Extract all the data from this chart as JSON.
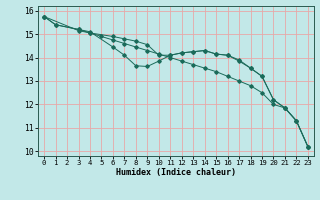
{
  "xlabel": "Humidex (Indice chaleur)",
  "background_color": "#c2e8e8",
  "grid_color": "#e8a8a8",
  "line_color": "#1a6b5a",
  "xlim": [
    -0.5,
    23.5
  ],
  "ylim": [
    9.8,
    16.2
  ],
  "xticks": [
    0,
    1,
    2,
    3,
    4,
    5,
    6,
    7,
    8,
    9,
    10,
    11,
    12,
    13,
    14,
    15,
    16,
    17,
    18,
    19,
    20,
    21,
    22,
    23
  ],
  "yticks": [
    10,
    11,
    12,
    13,
    14,
    15,
    16
  ],
  "line1_x": [
    0,
    1,
    3,
    4,
    6,
    7,
    8,
    9,
    10,
    11,
    12,
    13,
    14,
    15,
    16,
    17,
    18,
    19,
    20,
    21,
    22,
    23
  ],
  "line1_y": [
    15.75,
    15.4,
    15.2,
    15.1,
    14.45,
    14.1,
    13.65,
    13.62,
    13.85,
    14.1,
    14.2,
    14.25,
    14.3,
    14.15,
    14.1,
    13.85,
    13.55,
    13.2,
    12.2,
    11.85,
    11.3,
    10.2
  ],
  "line2_x": [
    0,
    1,
    3,
    4,
    6,
    7,
    8,
    9,
    10,
    11,
    12,
    13,
    14,
    15,
    16,
    17,
    18,
    19,
    20,
    21,
    22,
    23
  ],
  "line2_y": [
    15.75,
    15.4,
    15.2,
    15.05,
    14.9,
    14.8,
    14.7,
    14.55,
    14.1,
    14.1,
    14.2,
    14.25,
    14.3,
    14.15,
    14.1,
    13.9,
    13.55,
    13.2,
    12.2,
    11.85,
    11.3,
    10.2
  ],
  "line3_x": [
    0,
    3,
    4,
    5,
    6,
    7,
    8,
    9,
    10,
    11,
    12,
    13,
    14,
    15,
    16,
    17,
    18,
    19,
    20,
    21,
    22,
    23
  ],
  "line3_y": [
    15.75,
    15.15,
    15.05,
    14.9,
    14.75,
    14.6,
    14.45,
    14.3,
    14.15,
    14.0,
    13.85,
    13.7,
    13.55,
    13.4,
    13.2,
    13.0,
    12.8,
    12.5,
    12.0,
    11.85,
    11.3,
    10.2
  ],
  "xlabel_fontsize": 6.0,
  "tick_fontsize": 5.2,
  "ytick_fontsize": 5.8,
  "lw": 0.7,
  "ms": 1.8
}
